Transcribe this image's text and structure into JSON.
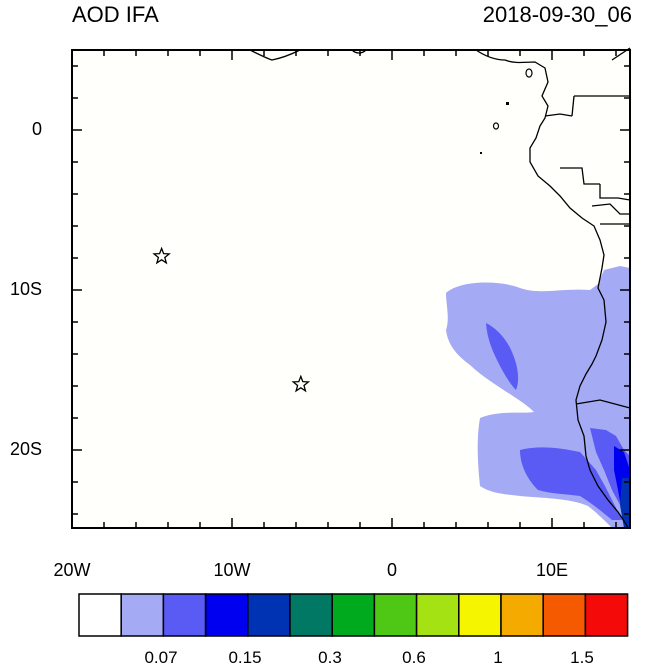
{
  "title_left": "AOD IFA",
  "title_right": "2018-09-30_06",
  "y_tick_labels": [
    "0",
    "10S",
    "20S"
  ],
  "x_tick_labels": [
    "20W",
    "10W",
    "0",
    "10E"
  ],
  "stations": [
    {
      "lon": -14.4,
      "lat": -7.9
    },
    {
      "lon": -5.7,
      "lat": -15.9
    }
  ],
  "colorbar": {
    "colors": [
      "#ffffff",
      "#a5aaf5",
      "#5a5af5",
      "#0000f0",
      "#0032b4",
      "#007864",
      "#00aa1e",
      "#4ec814",
      "#a5e214",
      "#f5f500",
      "#f5aa00",
      "#f55a00",
      "#f50a0a"
    ],
    "labels": [
      "0.07",
      "0.15",
      "0.3",
      "0.6",
      "1",
      "1.5"
    ]
  },
  "colors": {
    "map_background": "#fffffb",
    "aod_low": "#a5aaf5",
    "aod_mid": "#5a5af5",
    "aod_high": "#0000f0",
    "aod_highest": "#0032b4"
  }
}
